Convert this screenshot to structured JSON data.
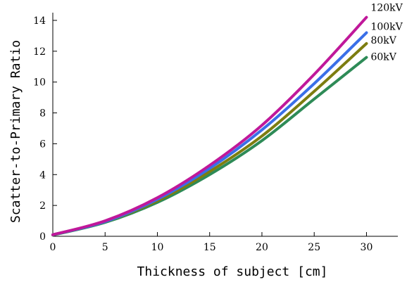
{
  "chart_data": {
    "type": "line",
    "title": "",
    "xlabel": "Thickness of subject [cm]",
    "ylabel": "Scatter-to-Primary Ratio",
    "xlim": [
      0,
      33
    ],
    "ylim": [
      0,
      14.5
    ],
    "xticks": [
      0,
      5,
      10,
      15,
      20,
      25,
      30
    ],
    "yticks": [
      0,
      2,
      4,
      6,
      8,
      10,
      12,
      14
    ],
    "grid": false,
    "legend": "inline labels at line ends (right)",
    "x": [
      0,
      5,
      10,
      15,
      20,
      25,
      30
    ],
    "series": [
      {
        "name": "120kV",
        "color": "#c0189a",
        "values": [
          0.1,
          1.0,
          2.5,
          4.6,
          7.2,
          10.5,
          14.2
        ]
      },
      {
        "name": "100kV",
        "color": "#3a6fe8",
        "values": [
          0.1,
          0.95,
          2.4,
          4.4,
          6.9,
          9.9,
          13.2
        ]
      },
      {
        "name": "80kV",
        "color": "#7d7d10",
        "values": [
          0.1,
          0.95,
          2.3,
          4.2,
          6.5,
          9.4,
          12.5
        ]
      },
      {
        "name": "60kV",
        "color": "#2e8b57",
        "values": [
          0.08,
          0.9,
          2.2,
          4.0,
          6.2,
          8.9,
          11.6
        ]
      }
    ]
  }
}
